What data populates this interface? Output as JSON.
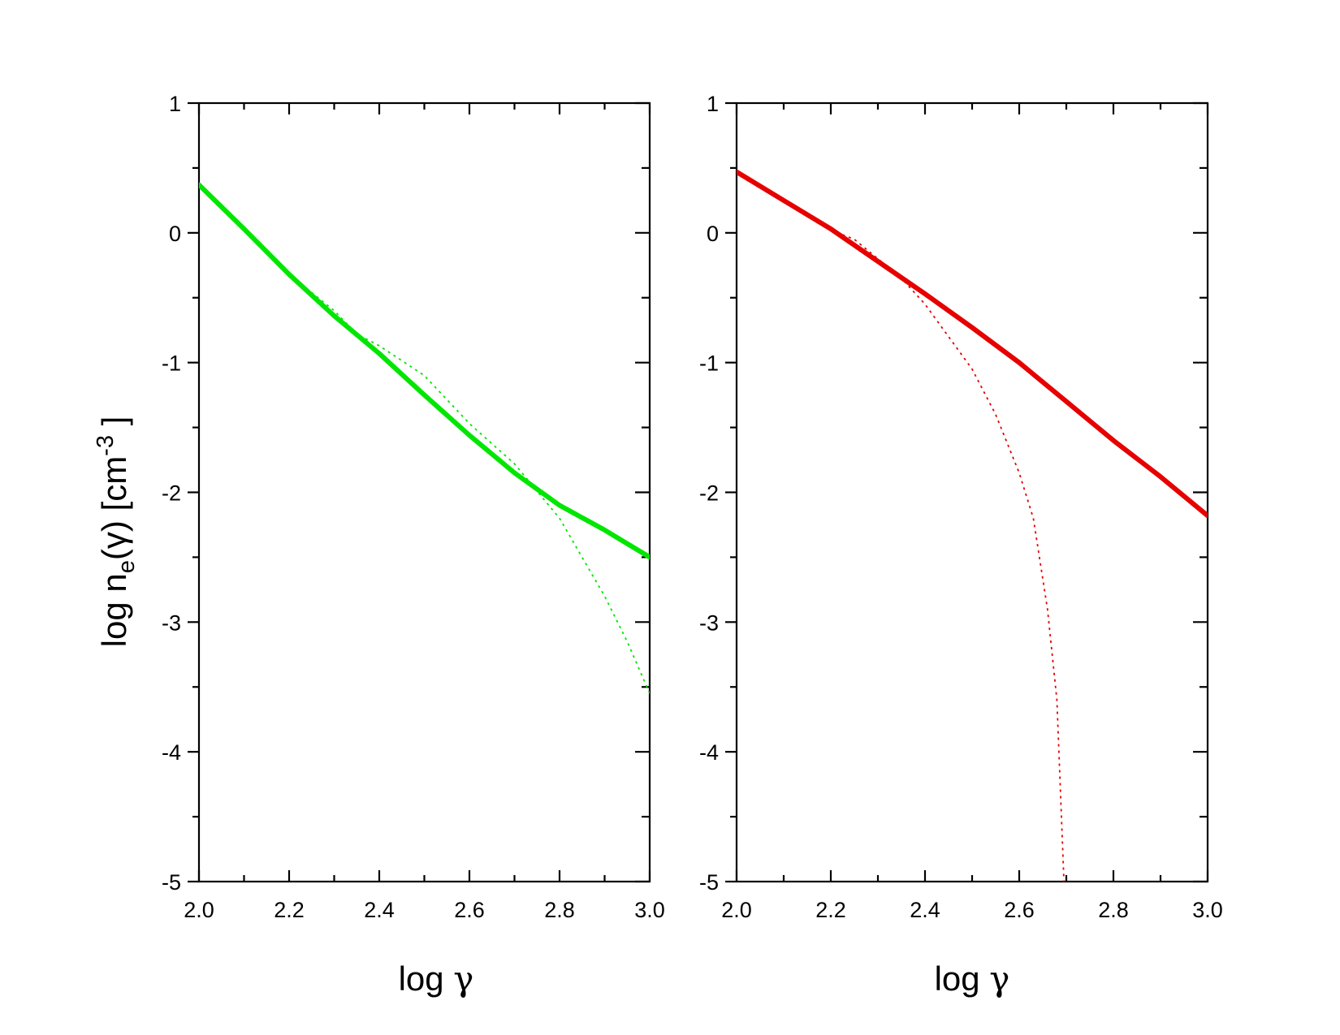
{
  "chart_data": [
    {
      "type": "line",
      "panel": "left",
      "xlabel_main": "log ",
      "xlabel_symbol": "γ",
      "ylabel": {
        "prefix": "log n",
        "subscript": "e",
        "middle": "(γ) [cm",
        "superscript": "-3",
        "suffix": " ]"
      },
      "xlim": [
        2.0,
        3.0
      ],
      "ylim": [
        -5,
        1
      ],
      "x_ticks": [
        "2.0",
        "2.2",
        "2.4",
        "2.6",
        "2.8",
        "3.0"
      ],
      "y_ticks": [
        "1",
        "0",
        "-1",
        "-2",
        "-3",
        "-4",
        "-5"
      ],
      "color": "#00e600",
      "series": [
        {
          "style": "solid",
          "x": [
            2.0,
            2.1,
            2.2,
            2.3,
            2.4,
            2.5,
            2.6,
            2.7,
            2.8,
            2.9,
            3.0
          ],
          "y": [
            0.37,
            0.03,
            -0.32,
            -0.64,
            -0.93,
            -1.25,
            -1.56,
            -1.85,
            -2.1,
            -2.29,
            -2.5
          ]
        },
        {
          "style": "dotted",
          "x": [
            2.0,
            2.1,
            2.2,
            2.3,
            2.35,
            2.4,
            2.5,
            2.6,
            2.7,
            2.8,
            2.9,
            2.95,
            3.0
          ],
          "y": [
            0.37,
            0.03,
            -0.32,
            -0.6,
            -0.78,
            -0.87,
            -1.1,
            -1.47,
            -1.78,
            -2.2,
            -2.8,
            -3.15,
            -3.55
          ]
        }
      ]
    },
    {
      "type": "line",
      "panel": "right",
      "xlabel_main": "log ",
      "xlabel_symbol": "γ",
      "xlim": [
        2.0,
        3.0
      ],
      "ylim": [
        -5,
        1
      ],
      "x_ticks": [
        "2.0",
        "2.2",
        "2.4",
        "2.6",
        "2.8",
        "3.0"
      ],
      "y_ticks": [
        "1",
        "0",
        "-1",
        "-2",
        "-3",
        "-4",
        "-5"
      ],
      "color": "#e60000",
      "series": [
        {
          "style": "solid",
          "x": [
            2.0,
            2.1,
            2.2,
            2.3,
            2.4,
            2.5,
            2.6,
            2.7,
            2.8,
            2.9,
            3.0
          ],
          "y": [
            0.47,
            0.25,
            0.03,
            -0.22,
            -0.47,
            -0.73,
            -1.0,
            -1.3,
            -1.6,
            -1.88,
            -2.18
          ]
        },
        {
          "style": "dotted",
          "x": [
            2.0,
            2.1,
            2.2,
            2.25,
            2.3,
            2.35,
            2.4,
            2.45,
            2.5,
            2.55,
            2.6,
            2.63,
            2.66,
            2.68,
            2.695
          ],
          "y": [
            0.47,
            0.25,
            0.02,
            -0.05,
            -0.2,
            -0.35,
            -0.55,
            -0.8,
            -1.05,
            -1.4,
            -1.85,
            -2.2,
            -2.9,
            -3.6,
            -5.0
          ]
        }
      ]
    }
  ]
}
